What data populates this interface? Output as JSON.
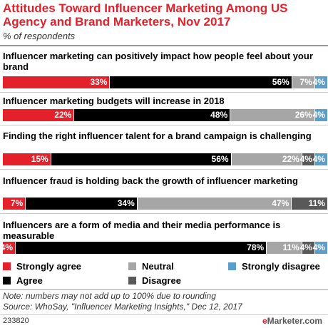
{
  "header": {
    "title": "Attitudes Toward Influencer Marketing Among US Agency and Brand Marketers, Nov 2017",
    "subtitle": "% of respondents"
  },
  "colors": {
    "strongly_agree": "#e4202b",
    "agree": "#000000",
    "neutral": "#a6a6a6",
    "disagree": "#595959",
    "strongly_disagree": "#5b9ec9"
  },
  "chart_data": {
    "type": "bar",
    "orientation": "horizontal",
    "stacked": true,
    "categories": [
      "Influencer marketing can positively impact how people feel about your brand",
      "Influencer marketing budgets will increase in 2018",
      "Finding the right influencer talent for a brand campaign is challenging",
      "Influencer fraud is holding back the growth of influencer marketing",
      "Influencers are a form of media and their media performance is measurable"
    ],
    "series": [
      {
        "name": "Strongly agree",
        "key": "strongly_agree",
        "values": [
          33,
          22,
          15,
          7,
          4
        ]
      },
      {
        "name": "Agree",
        "key": "agree",
        "values": [
          56,
          48,
          56,
          34,
          78
        ]
      },
      {
        "name": "Neutral",
        "key": "neutral",
        "values": [
          7,
          26,
          22,
          47,
          11
        ]
      },
      {
        "name": "Disagree",
        "key": "disagree",
        "values": [
          0,
          0,
          4,
          11,
          4
        ]
      },
      {
        "name": "Strongly disagree",
        "key": "strongly_disagree",
        "values": [
          4,
          4,
          4,
          0,
          4
        ]
      }
    ],
    "value_suffix": "%",
    "legend_position": "bottom"
  },
  "legend": {
    "items": [
      {
        "label": "Strongly agree",
        "key": "strongly_agree"
      },
      {
        "label": "Neutral",
        "key": "neutral"
      },
      {
        "label": "Strongly disagree",
        "key": "strongly_disagree"
      },
      {
        "label": "Agree",
        "key": "agree"
      },
      {
        "label": "Disagree",
        "key": "disagree"
      }
    ]
  },
  "footer": {
    "note": "Note: numbers may not add up to 100% due to rounding",
    "source": "Source: WhoSay, \"Influencer Marketing Insights,\" Dec 12, 2017",
    "chart_id": "233820",
    "brand_prefix": "e",
    "brand_rest": "Marketer.com"
  }
}
